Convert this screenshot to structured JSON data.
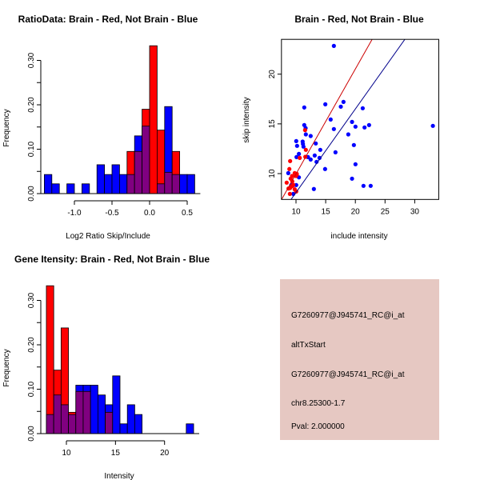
{
  "colors": {
    "brain": "#ff0000",
    "not_brain": "#0000ff",
    "overlap": "#800080",
    "info_bg": "#e6c8c2",
    "pval_text": "#a00000",
    "red_line": "#cc0000",
    "blue_line": "#00008b"
  },
  "chart_data": [
    {
      "type": "bar",
      "title": "RatioData: Brain - Red, Not Brain - Blue",
      "xlabel": "Log2 Ratio Skip/Include",
      "ylabel": "Frequency",
      "xlim": [
        -1.4,
        0.6
      ],
      "ylim": [
        0,
        0.333
      ],
      "xticks": [
        "-1.0",
        "-0.5",
        "0.0",
        "0.5"
      ],
      "xtick_values": [
        -1.0,
        -0.5,
        0.0,
        0.5
      ],
      "yticks": [
        "0.00",
        "0.10",
        "0.20",
        "0.30"
      ],
      "ytick_values": [
        0,
        0.05,
        0.1,
        0.15,
        0.2,
        0.25,
        0.3
      ],
      "ytick_labeled": [
        0,
        0.1,
        0.2,
        0.3
      ],
      "bin_start": -1.4,
      "bin_width": 0.1,
      "series": [
        {
          "name": "Brain",
          "color": "red",
          "values": [
            0,
            0,
            0,
            0,
            0,
            0,
            0,
            0,
            0,
            0,
            0,
            0.095,
            0.095,
            0.19,
            0.333,
            0.143,
            0.048,
            0.095,
            0,
            0
          ]
        },
        {
          "name": "Not Brain",
          "color": "blue",
          "values": [
            0.043,
            0.022,
            0,
            0.022,
            0,
            0.022,
            0,
            0.065,
            0.043,
            0.065,
            0.043,
            0.043,
            0.13,
            0.152,
            0,
            0.022,
            0.196,
            0.043,
            0.043,
            0.043
          ]
        }
      ]
    },
    {
      "type": "scatter",
      "title": "Brain - Red, Not Brain - Blue",
      "xlabel": "include intensity",
      "ylabel": "skip intensity",
      "xlim": [
        7.55,
        34.05
      ],
      "ylim": [
        7.4,
        23.5
      ],
      "xticks": [
        "10",
        "15",
        "20",
        "25",
        "30"
      ],
      "xtick_values": [
        10,
        15,
        20,
        25,
        30
      ],
      "yticks": [
        "10",
        "15",
        "20"
      ],
      "ytick_values": [
        10,
        15,
        20
      ],
      "series": [
        {
          "name": "Not Brain",
          "color": "blue",
          "points": [
            [
              16.38,
              22.84
            ],
            [
              14.94,
              16.97
            ],
            [
              18.0,
              17.21
            ],
            [
              17.55,
              16.73
            ],
            [
              11.39,
              16.65
            ],
            [
              21.24,
              16.57
            ],
            [
              15.84,
              15.44
            ],
            [
              19.44,
              15.2
            ],
            [
              20.02,
              14.72
            ],
            [
              21.55,
              14.64
            ],
            [
              22.31,
              14.88
            ],
            [
              16.38,
              14.48
            ],
            [
              11.39,
              14.88
            ],
            [
              11.62,
              14.58
            ],
            [
              11.66,
              13.94
            ],
            [
              12.47,
              13.78
            ],
            [
              18.81,
              13.94
            ],
            [
              10.04,
              13.27
            ],
            [
              11.12,
              13.22
            ],
            [
              11.17,
              12.98
            ],
            [
              11.26,
              12.71
            ],
            [
              10.18,
              12.79
            ],
            [
              13.33,
              13.03
            ],
            [
              14.09,
              12.39
            ],
            [
              19.75,
              12.87
            ],
            [
              16.65,
              12.14
            ],
            [
              10.49,
              11.98
            ],
            [
              10.09,
              11.66
            ],
            [
              12.02,
              11.66
            ],
            [
              13.15,
              11.82
            ],
            [
              13.96,
              11.58
            ],
            [
              12.47,
              11.42
            ],
            [
              13.46,
              11.18
            ],
            [
              20.02,
              10.94
            ],
            [
              14.9,
              10.46
            ],
            [
              8.7,
              10.05
            ],
            [
              10.49,
              9.62
            ],
            [
              19.44,
              9.49
            ],
            [
              9.6,
              8.85
            ],
            [
              10.04,
              8.85
            ],
            [
              9.19,
              8.85
            ],
            [
              21.37,
              8.77
            ],
            [
              22.58,
              8.77
            ],
            [
              13.01,
              8.45
            ],
            [
              9.55,
              7.96
            ],
            [
              33.06,
              14.8
            ]
          ]
        },
        {
          "name": "Brain",
          "color": "red",
          "points": [
            [
              9.01,
              11.26
            ],
            [
              8.88,
              10.46
            ],
            [
              8.43,
              9.09
            ],
            [
              9.1,
              9.49
            ],
            [
              9.78,
              10.05
            ],
            [
              10.13,
              9.89
            ],
            [
              9.37,
              9.22
            ],
            [
              9.01,
              8.55
            ],
            [
              9.78,
              8.42
            ],
            [
              10.04,
              8.2
            ],
            [
              8.97,
              7.96
            ],
            [
              11.53,
              14.37
            ],
            [
              11.66,
              12.39
            ],
            [
              10.63,
              11.58
            ],
            [
              9.33,
              9.76
            ],
            [
              10.0,
              9.76
            ],
            [
              8.74,
              8.5
            ],
            [
              9.55,
              8.87
            ],
            [
              9.33,
              8.74
            ],
            [
              10.13,
              9.97
            ],
            [
              11.57,
              11.69
            ]
          ]
        }
      ],
      "fit_lines": [
        {
          "name": "Brain fit",
          "color": "red",
          "slope": 1.056,
          "intercept": -0.6
        },
        {
          "name": "Not Brain fit",
          "color": "blue",
          "slope": 0.84,
          "intercept": -0.3
        }
      ]
    },
    {
      "type": "bar",
      "title": "Gene Itensity: Brain - Red, Not Brain - Blue",
      "xlabel": "Intensity",
      "ylabel": "Frequency",
      "xlim": [
        7.96,
        22.96
      ],
      "ylim": [
        0,
        0.333
      ],
      "xticks": [
        "10",
        "15",
        "20"
      ],
      "xtick_values": [
        10,
        15,
        20
      ],
      "yticks": [
        "0.00",
        "0.10",
        "0.20",
        "0.30"
      ],
      "ytick_values": [
        0,
        0.05,
        0.1,
        0.15,
        0.2,
        0.25,
        0.3
      ],
      "ytick_labeled": [
        0,
        0.1,
        0.2,
        0.3
      ],
      "bin_start": 7.96,
      "bin_width": 0.75,
      "series": [
        {
          "name": "Brain",
          "color": "red",
          "values": [
            0.333,
            0.143,
            0.238,
            0.048,
            0.095,
            0.095,
            0,
            0,
            0.048,
            0,
            0,
            0,
            0,
            0,
            0,
            0,
            0,
            0,
            0,
            0
          ]
        },
        {
          "name": "Not Brain",
          "color": "blue",
          "values": [
            0.043,
            0.087,
            0.065,
            0.043,
            0.109,
            0.109,
            0.109,
            0.087,
            0.065,
            0.13,
            0.022,
            0.065,
            0.043,
            0,
            0,
            0,
            0,
            0,
            0,
            0.022
          ]
        }
      ]
    }
  ],
  "info_panel": {
    "lines": [
      "G7260977@J945741_RC@i_at",
      "altTxStart",
      "G7260977@J945741_RC@i_at",
      "chr8.25300-1.7"
    ],
    "pval": "Pval: 2.000000"
  }
}
